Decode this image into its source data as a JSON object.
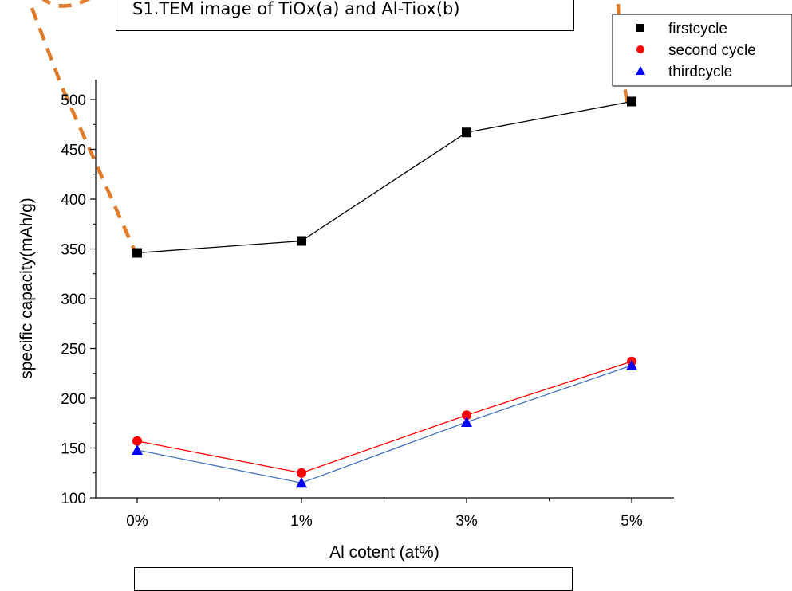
{
  "caption": {
    "text": "S1.TEM image of TiOx(a) and Al-Tiox(b)"
  },
  "chart_data": {
    "type": "line",
    "categories": [
      "0%",
      "1%",
      "3%",
      "5%"
    ],
    "xlabel": "Al cotent (at%)",
    "ylabel": "specific capacity(mAh/g)",
    "ylim": [
      100,
      520
    ],
    "yticks": [
      100,
      150,
      200,
      250,
      300,
      350,
      400,
      450,
      500
    ],
    "grid": false,
    "legend_position": "top-right",
    "series": [
      {
        "name": "firstcycle",
        "values": [
          346,
          358,
          467,
          498
        ],
        "color": "#000000",
        "marker": "square"
      },
      {
        "name": "second cycle",
        "values": [
          157,
          125,
          183,
          237
        ],
        "color": "#ff0000",
        "marker": "circle"
      },
      {
        "name": "thirdcycle",
        "values": [
          148,
          115,
          176,
          233
        ],
        "color": "#0000ff",
        "line_color": "#4472c4",
        "marker": "triangle"
      }
    ]
  },
  "colors": {
    "callout_dash": "#e07b2a"
  }
}
